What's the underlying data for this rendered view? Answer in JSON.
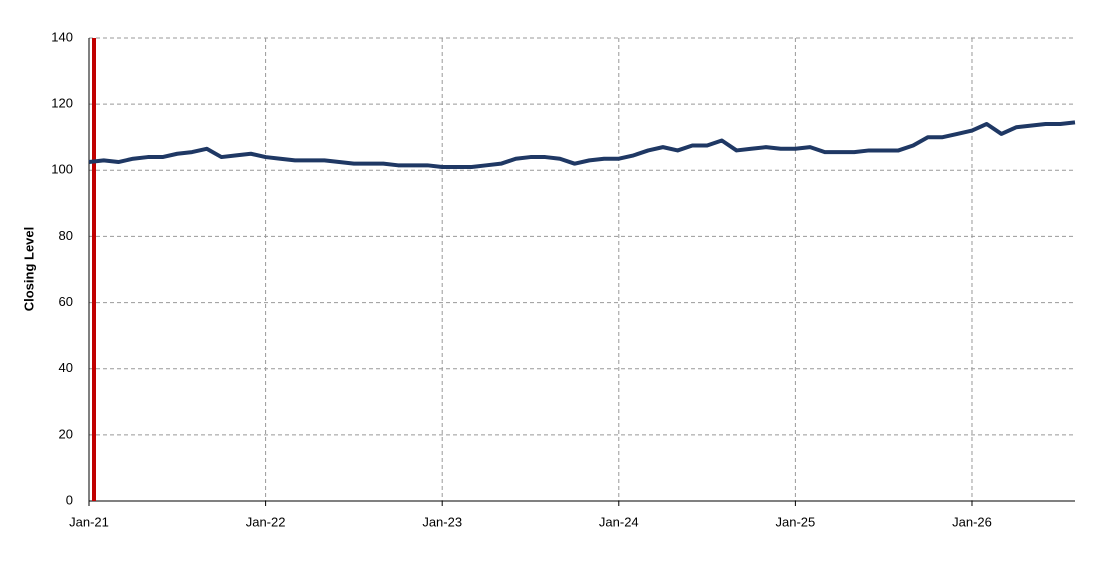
{
  "chart_data": {
    "type": "line",
    "y_label": "Closing Level",
    "x": [
      "2021-01",
      "2021-02",
      "2021-03",
      "2021-04",
      "2021-05",
      "2021-06",
      "2021-07",
      "2021-08",
      "2021-09",
      "2021-10",
      "2021-11",
      "2021-12",
      "2022-01",
      "2022-02",
      "2022-03",
      "2022-04",
      "2022-05",
      "2022-06",
      "2022-07",
      "2022-08",
      "2022-09",
      "2022-10",
      "2022-11",
      "2022-12",
      "2023-01",
      "2023-02",
      "2023-03",
      "2023-04",
      "2023-05",
      "2023-06",
      "2023-07",
      "2023-08",
      "2023-09",
      "2023-10",
      "2023-11",
      "2023-12",
      "2024-01",
      "2024-02",
      "2024-03",
      "2024-04",
      "2024-05",
      "2024-06",
      "2024-07",
      "2024-08",
      "2024-09",
      "2024-10",
      "2024-11",
      "2024-12",
      "2025-01",
      "2025-02",
      "2025-03",
      "2025-04",
      "2025-05",
      "2025-06",
      "2025-07",
      "2025-08",
      "2025-09",
      "2025-10",
      "2025-11",
      "2025-12",
      "2026-01",
      "2026-02",
      "2026-03",
      "2026-04",
      "2026-05",
      "2026-06",
      "2026-07",
      "2026-08"
    ],
    "series": [
      {
        "name": "Closing Level",
        "color": "#1f3864",
        "values": [
          102.5,
          103,
          102.5,
          103.5,
          104,
          104,
          105,
          105.5,
          106.5,
          104,
          104.5,
          105,
          104,
          103.5,
          103,
          103,
          103,
          102.5,
          102,
          102,
          102,
          101.5,
          101.5,
          101.5,
          101,
          101,
          101,
          101.5,
          102,
          103.5,
          104,
          104,
          103.5,
          102,
          103,
          103.5,
          103.5,
          104.5,
          106,
          107,
          106,
          107.5,
          107.5,
          109,
          106,
          106.5,
          107,
          106.5,
          106.5,
          107,
          105.5,
          105.5,
          105.5,
          106,
          106,
          106,
          107.5,
          110,
          110,
          111,
          112,
          114,
          111,
          113,
          113.5,
          114,
          114,
          114.5
        ]
      }
    ],
    "xlim": [
      "2021-01",
      "2026-08"
    ],
    "xticks": [
      {
        "value": "2021-01",
        "label": "Jan-21"
      },
      {
        "value": "2022-01",
        "label": "Jan-22"
      },
      {
        "value": "2023-01",
        "label": "Jan-23"
      },
      {
        "value": "2024-01",
        "label": "Jan-24"
      },
      {
        "value": "2025-01",
        "label": "Jan-25"
      },
      {
        "value": "2026-01",
        "label": "Jan-26"
      }
    ],
    "ylim": [
      0,
      140
    ],
    "yticks": [
      0,
      20,
      40,
      60,
      80,
      100,
      120,
      140
    ],
    "grid": true,
    "vline": {
      "x": "2021-01",
      "color": "#c00000"
    }
  }
}
